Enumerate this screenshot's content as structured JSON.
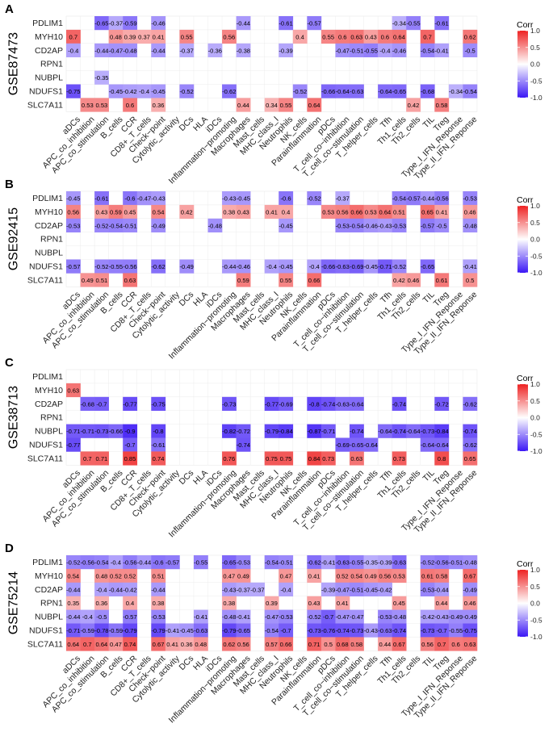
{
  "chart_data": {
    "type": "heatmap",
    "legend_title": "Corr",
    "legend_ticks": [
      1.0,
      0.5,
      0.0,
      -0.5,
      -1.0
    ],
    "color_low": "#3b17f5",
    "color_mid": "#ffffff",
    "color_high": "#ee2222",
    "columns": [
      "aDCs",
      "APC_co_inhibition",
      "APC_co_stimulation",
      "B_cells",
      "CCR",
      "CD8+_T_cells",
      "Check−point",
      "Cytolytic_activity",
      "DCs",
      "HLA",
      "iDCs",
      "Inflammation−promoting",
      "Macrophages",
      "Mast_cells",
      "MHC_class_I",
      "Neutrophils",
      "NK_cells",
      "Parainflammation",
      "pDCs",
      "T_cell_co−inhibition",
      "T_cell_co−stimulation",
      "T_helper_cells",
      "Tfh",
      "Th1_cells",
      "Th2_cells",
      "TIL",
      "Treg",
      "Type_I_IFN_Reponse",
      "Type_II_IFN_Reponse"
    ],
    "rows": [
      "PDLIM1",
      "MYH10",
      "CD2AP",
      "RPN1",
      "NUBPL",
      "NDUFS1",
      "SLC7A11"
    ],
    "panels": [
      {
        "letter": "A",
        "dataset": "GSE87473",
        "values": [
          [
            null,
            null,
            -0.65,
            -0.37,
            -0.59,
            null,
            -0.46,
            null,
            null,
            null,
            null,
            null,
            -0.44,
            null,
            null,
            -0.61,
            null,
            -0.57,
            null,
            null,
            null,
            null,
            null,
            -0.34,
            -0.55,
            null,
            -0.61,
            null,
            null
          ],
          [
            0.7,
            null,
            null,
            0.48,
            0.39,
            0.37,
            0.41,
            null,
            0.55,
            null,
            null,
            0.56,
            null,
            null,
            null,
            null,
            0.4,
            null,
            0.55,
            0.6,
            0.63,
            0.43,
            0.6,
            0.64,
            null,
            0.7,
            null,
            null,
            0.62
          ],
          [
            -0.4,
            null,
            -0.44,
            -0.47,
            -0.48,
            null,
            -0.44,
            null,
            -0.37,
            null,
            -0.36,
            null,
            -0.38,
            null,
            null,
            -0.39,
            null,
            null,
            null,
            -0.47,
            -0.51,
            -0.55,
            -0.4,
            -0.46,
            null,
            -0.54,
            -0.41,
            null,
            -0.5
          ],
          [
            null,
            null,
            null,
            null,
            null,
            null,
            null,
            null,
            null,
            null,
            null,
            null,
            null,
            null,
            null,
            null,
            null,
            null,
            null,
            null,
            null,
            null,
            null,
            null,
            null,
            null,
            null,
            null,
            null
          ],
          [
            null,
            null,
            -0.35,
            null,
            null,
            null,
            null,
            null,
            null,
            null,
            null,
            null,
            null,
            null,
            null,
            null,
            null,
            null,
            null,
            null,
            null,
            null,
            null,
            null,
            null,
            null,
            null,
            null,
            null
          ],
          [
            -0.75,
            null,
            null,
            -0.45,
            -0.42,
            -0.4,
            -0.45,
            null,
            -0.52,
            null,
            null,
            -0.62,
            null,
            null,
            null,
            null,
            -0.52,
            null,
            -0.66,
            -0.64,
            -0.63,
            null,
            -0.64,
            -0.65,
            null,
            -0.68,
            null,
            -0.34,
            -0.54
          ],
          [
            null,
            0.53,
            0.53,
            null,
            0.6,
            null,
            0.36,
            null,
            null,
            null,
            null,
            null,
            0.44,
            null,
            0.34,
            0.55,
            null,
            0.64,
            null,
            null,
            null,
            null,
            null,
            null,
            0.42,
            null,
            0.58,
            null,
            null
          ]
        ]
      },
      {
        "letter": "B",
        "dataset": "GSE92415",
        "values": [
          [
            -0.45,
            null,
            -0.61,
            null,
            -0.6,
            -0.47,
            -0.43,
            null,
            null,
            null,
            null,
            -0.43,
            -0.45,
            null,
            null,
            -0.6,
            null,
            -0.52,
            null,
            -0.37,
            null,
            null,
            null,
            -0.54,
            -0.57,
            -0.44,
            -0.56,
            null,
            -0.53
          ],
          [
            0.56,
            null,
            0.43,
            0.59,
            0.45,
            null,
            0.54,
            null,
            0.42,
            null,
            null,
            0.38,
            0.43,
            null,
            0.41,
            0.4,
            null,
            null,
            0.53,
            0.56,
            0.66,
            0.53,
            0.64,
            0.51,
            null,
            0.65,
            0.41,
            null,
            0.46
          ],
          [
            -0.53,
            null,
            -0.52,
            -0.54,
            -0.51,
            null,
            -0.49,
            null,
            null,
            null,
            -0.48,
            null,
            null,
            null,
            null,
            -0.45,
            null,
            null,
            null,
            -0.53,
            -0.54,
            -0.46,
            -0.43,
            -0.53,
            null,
            -0.57,
            -0.5,
            null,
            -0.48
          ],
          [
            null,
            null,
            null,
            null,
            null,
            null,
            null,
            null,
            null,
            null,
            null,
            null,
            null,
            null,
            null,
            null,
            null,
            null,
            null,
            null,
            null,
            null,
            null,
            null,
            null,
            null,
            null,
            null,
            null
          ],
          [
            null,
            null,
            null,
            null,
            null,
            null,
            null,
            null,
            null,
            null,
            null,
            null,
            null,
            null,
            null,
            null,
            null,
            null,
            null,
            null,
            null,
            null,
            null,
            null,
            null,
            null,
            null,
            null,
            null
          ],
          [
            -0.57,
            null,
            -0.52,
            -0.55,
            -0.56,
            null,
            -0.62,
            null,
            -0.49,
            null,
            null,
            -0.44,
            -0.46,
            null,
            -0.4,
            -0.45,
            null,
            -0.4,
            -0.66,
            -0.63,
            -0.69,
            -0.45,
            -0.71,
            -0.52,
            null,
            -0.65,
            null,
            null,
            -0.41
          ],
          [
            null,
            0.49,
            0.51,
            null,
            0.63,
            null,
            null,
            null,
            null,
            null,
            null,
            null,
            0.59,
            null,
            null,
            0.55,
            null,
            0.66,
            null,
            null,
            null,
            null,
            null,
            0.42,
            0.46,
            null,
            0.61,
            null,
            0.5
          ]
        ]
      },
      {
        "letter": "C",
        "dataset": "GSE38713",
        "values": [
          [
            null,
            null,
            null,
            null,
            null,
            null,
            null,
            null,
            null,
            null,
            null,
            null,
            null,
            null,
            null,
            null,
            null,
            null,
            null,
            null,
            null,
            null,
            null,
            null,
            null,
            null,
            null,
            null,
            null
          ],
          [
            0.63,
            null,
            null,
            null,
            null,
            null,
            null,
            null,
            null,
            null,
            null,
            null,
            null,
            null,
            null,
            null,
            null,
            null,
            null,
            null,
            null,
            null,
            null,
            null,
            null,
            null,
            null,
            null,
            null
          ],
          [
            null,
            -0.68,
            -0.7,
            null,
            -0.77,
            null,
            -0.75,
            null,
            null,
            null,
            null,
            -0.73,
            null,
            null,
            -0.77,
            -0.69,
            null,
            -0.8,
            -0.74,
            -0.63,
            -0.64,
            null,
            null,
            -0.74,
            null,
            null,
            -0.72,
            null,
            -0.62
          ],
          [
            null,
            null,
            null,
            null,
            null,
            null,
            null,
            null,
            null,
            null,
            null,
            null,
            null,
            null,
            null,
            null,
            null,
            null,
            null,
            null,
            null,
            null,
            null,
            null,
            null,
            null,
            null,
            null,
            null
          ],
          [
            -0.71,
            -0.71,
            -0.73,
            -0.66,
            -0.9,
            null,
            -0.8,
            null,
            null,
            null,
            null,
            -0.82,
            -0.72,
            null,
            -0.79,
            -0.84,
            null,
            -0.87,
            -0.71,
            null,
            -0.74,
            null,
            -0.64,
            -0.74,
            -0.64,
            -0.73,
            -0.84,
            null,
            -0.74
          ],
          [
            -0.77,
            null,
            null,
            null,
            -0.7,
            null,
            -0.61,
            null,
            null,
            null,
            null,
            null,
            -0.74,
            null,
            null,
            null,
            null,
            null,
            null,
            -0.69,
            -0.65,
            -0.64,
            null,
            null,
            null,
            -0.64,
            -0.64,
            null,
            -0.62
          ],
          [
            null,
            0.7,
            0.71,
            null,
            0.85,
            null,
            0.74,
            null,
            null,
            null,
            null,
            0.76,
            null,
            null,
            0.75,
            0.75,
            null,
            0.84,
            0.73,
            null,
            0.63,
            null,
            null,
            0.73,
            null,
            null,
            0.8,
            null,
            0.65
          ]
        ]
      },
      {
        "letter": "D",
        "dataset": "GSE75214",
        "values": [
          [
            -0.52,
            -0.56,
            -0.54,
            -0.4,
            -0.56,
            -0.44,
            -0.6,
            -0.57,
            null,
            -0.55,
            null,
            -0.65,
            -0.53,
            null,
            -0.54,
            -0.51,
            null,
            -0.62,
            -0.41,
            -0.63,
            -0.55,
            -0.35,
            -0.39,
            -0.63,
            null,
            -0.52,
            -0.56,
            -0.51,
            -0.48
          ],
          [
            0.54,
            null,
            0.48,
            0.52,
            0.52,
            null,
            0.51,
            null,
            null,
            null,
            null,
            0.47,
            0.49,
            null,
            null,
            0.47,
            null,
            0.41,
            null,
            0.52,
            0.54,
            0.49,
            0.56,
            0.53,
            null,
            0.61,
            0.58,
            null,
            0.67
          ],
          [
            -0.44,
            null,
            -0.4,
            -0.44,
            -0.42,
            null,
            -0.44,
            null,
            null,
            null,
            null,
            -0.43,
            -0.37,
            -0.37,
            null,
            -0.4,
            null,
            null,
            -0.39,
            -0.47,
            -0.51,
            -0.45,
            -0.42,
            null,
            null,
            -0.53,
            -0.44,
            null,
            -0.49
          ],
          [
            0.35,
            null,
            0.36,
            null,
            0.4,
            null,
            0.38,
            null,
            null,
            null,
            null,
            0.38,
            null,
            null,
            0.39,
            null,
            null,
            0.43,
            null,
            0.41,
            null,
            null,
            null,
            0.45,
            null,
            null,
            0.44,
            null,
            0.46
          ],
          [
            -0.44,
            -0.4,
            -0.5,
            null,
            -0.57,
            null,
            -0.53,
            null,
            null,
            -0.41,
            null,
            -0.48,
            -0.41,
            null,
            -0.47,
            -0.53,
            null,
            -0.52,
            -0.7,
            -0.47,
            -0.47,
            null,
            -0.53,
            -0.48,
            null,
            -0.42,
            -0.43,
            -0.49,
            -0.49
          ],
          [
            -0.71,
            -0.59,
            -0.78,
            -0.59,
            -0.79,
            null,
            -0.79,
            -0.41,
            -0.45,
            -0.63,
            null,
            -0.79,
            -0.65,
            null,
            -0.54,
            -0.7,
            null,
            -0.73,
            -0.76,
            -0.74,
            -0.73,
            -0.43,
            -0.63,
            -0.74,
            null,
            -0.73,
            -0.7,
            -0.55,
            -0.75
          ],
          [
            0.64,
            0.7,
            0.64,
            0.47,
            0.74,
            null,
            0.67,
            0.41,
            0.36,
            0.48,
            null,
            0.62,
            0.56,
            null,
            0.57,
            0.66,
            null,
            0.71,
            0.5,
            0.68,
            0.58,
            null,
            0.44,
            0.67,
            null,
            0.56,
            0.7,
            0.6,
            0.63
          ]
        ]
      }
    ]
  }
}
